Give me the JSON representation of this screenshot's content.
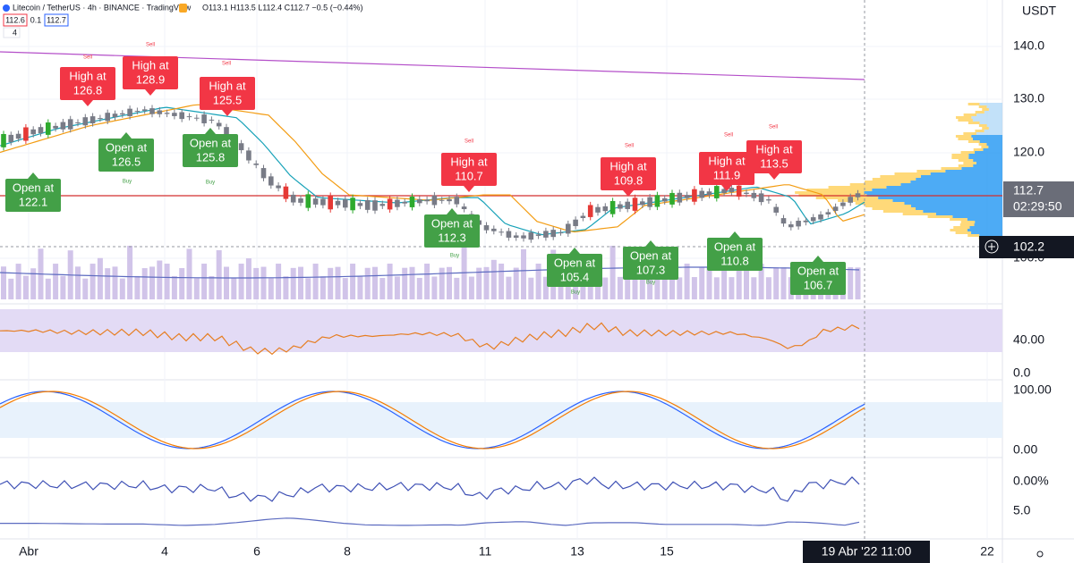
{
  "header": {
    "symbol": "Litecoin / TetherUS · 4h · BINANCE · TradingView",
    "ohlc": "O113.1 H113.5 L112.4 C112.7 −0.5 (−0.44%)",
    "bid": "112.6",
    "spread": "0.1",
    "ask": "112.7",
    "indicators": "4"
  },
  "currency": "USDT",
  "price_axis": [
    "140.0",
    "130.0",
    "120.0",
    "100.0"
  ],
  "pane_axis": [
    "40.00",
    "0.0",
    "100.00",
    "0.00",
    "0.00%",
    "5.0"
  ],
  "last_price": "112.7",
  "countdown": "02:29:50",
  "crosshair_price": "102.2",
  "time_axis": [
    "Abr",
    "4",
    "6",
    "8",
    "11",
    "13",
    "15",
    "22"
  ],
  "crosshair_time": "19 Abr '22  11:00",
  "callouts": [
    {
      "label": "Open at",
      "value": "122.1"
    },
    {
      "label": "High at",
      "value": "126.8"
    },
    {
      "label": "High at",
      "value": "128.9"
    },
    {
      "label": "Open at",
      "value": "126.5"
    },
    {
      "label": "High at",
      "value": "125.5"
    },
    {
      "label": "Open at",
      "value": "125.8"
    },
    {
      "label": "High at",
      "value": "110.7"
    },
    {
      "label": "Open at",
      "value": "112.3"
    },
    {
      "label": "High at",
      "value": "109.8"
    },
    {
      "label": "Open at",
      "value": "105.4"
    },
    {
      "label": "Open at",
      "value": "107.3"
    },
    {
      "label": "High at",
      "value": "111.9"
    },
    {
      "label": "High at",
      "value": "113.5"
    },
    {
      "label": "Open at",
      "value": "110.8"
    },
    {
      "label": "Open at",
      "value": "106.7"
    }
  ],
  "signals": [
    "Sell",
    "Sell",
    "Sell",
    "Sell",
    "Sell",
    "Sell",
    "Sell",
    "Buy",
    "Buy",
    "Buy",
    "Buy",
    "Buy"
  ]
}
